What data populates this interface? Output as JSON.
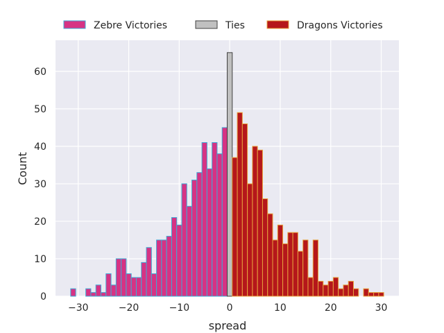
{
  "chart_data": {
    "type": "bar",
    "xlabel": "spread",
    "ylabel": "Count",
    "xlim": [
      -34.5,
      33.5
    ],
    "ylim": [
      0,
      68.3
    ],
    "xticks": [
      -30,
      -20,
      -10,
      0,
      10,
      20,
      30
    ],
    "yticks": [
      0,
      10,
      20,
      30,
      40,
      50,
      60
    ],
    "grid": true,
    "legend_position": "top-center",
    "series": [
      {
        "name": "Zebre Victories",
        "color": "#d63384",
        "edge_color": "#3fa9d6",
        "x": [
          -31,
          -28,
          -27,
          -26,
          -25,
          -24,
          -23,
          -22,
          -21,
          -20,
          -19,
          -18,
          -17,
          -16,
          -15,
          -14,
          -13,
          -12,
          -11,
          -10,
          -9,
          -8,
          -7,
          -6,
          -5,
          -4,
          -3,
          -2,
          -1
        ],
        "values": [
          2,
          2,
          1,
          3,
          1,
          6,
          3,
          10,
          10,
          6,
          5,
          5,
          9,
          13,
          6,
          15,
          15,
          16,
          21,
          19,
          30,
          24,
          31,
          33,
          41,
          34,
          41,
          38,
          45
        ]
      },
      {
        "name": "Ties",
        "color": "#c0c0c0",
        "edge_color": "#404040",
        "x": [
          0
        ],
        "values": [
          65
        ]
      },
      {
        "name": "Dragons Victories",
        "color": "#b5171b",
        "edge_color": "#e8a33d",
        "x": [
          1,
          2,
          3,
          4,
          5,
          6,
          7,
          8,
          9,
          10,
          11,
          12,
          13,
          14,
          15,
          16,
          17,
          18,
          19,
          20,
          21,
          22,
          23,
          24,
          25,
          27,
          28,
          29,
          30
        ],
        "values": [
          37,
          49,
          46,
          30,
          40,
          39,
          26,
          22,
          15,
          19,
          14,
          17,
          17,
          12,
          15,
          5,
          15,
          4,
          3,
          4,
          5,
          2,
          3,
          4,
          2,
          2,
          1,
          1,
          1
        ]
      }
    ]
  }
}
